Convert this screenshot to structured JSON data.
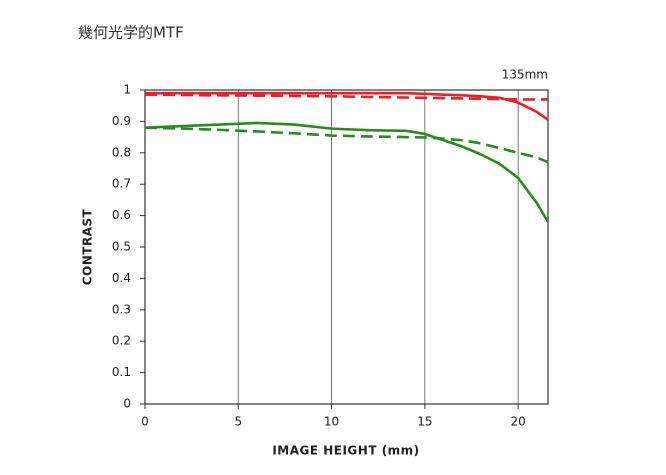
{
  "chart_data": {
    "type": "line",
    "title": "幾何光学的MTF",
    "annotation": "135mm",
    "x_label": "IMAGE HEIGHT (mm)",
    "y_label": "CONTRAST",
    "x": [
      0,
      2,
      4,
      6,
      8,
      10,
      12,
      14,
      15,
      16,
      17,
      18,
      19,
      20,
      21,
      21.6
    ],
    "series": [
      {
        "color": "#e8212a",
        "dashed": false,
        "values": [
          0.99,
          0.99,
          0.99,
          0.99,
          0.99,
          0.99,
          0.99,
          0.99,
          0.988,
          0.985,
          0.983,
          0.98,
          0.975,
          0.96,
          0.93,
          0.905
        ]
      },
      {
        "color": "#e8212a",
        "dashed": true,
        "values": [
          0.985,
          0.984,
          0.983,
          0.982,
          0.981,
          0.98,
          0.978,
          0.976,
          0.975,
          0.974,
          0.973,
          0.972,
          0.971,
          0.97,
          0.97,
          0.97
        ]
      },
      {
        "color": "#2a8a22",
        "dashed": false,
        "values": [
          0.88,
          0.885,
          0.89,
          0.895,
          0.89,
          0.877,
          0.872,
          0.87,
          0.86,
          0.84,
          0.82,
          0.795,
          0.765,
          0.72,
          0.64,
          0.58
        ]
      },
      {
        "color": "#2a8a22",
        "dashed": true,
        "values": [
          0.88,
          0.877,
          0.873,
          0.868,
          0.862,
          0.855,
          0.852,
          0.85,
          0.849,
          0.845,
          0.84,
          0.83,
          0.815,
          0.8,
          0.785,
          0.77
        ]
      }
    ],
    "xlim": [
      0,
      21.6
    ],
    "ylim": [
      0,
      1
    ],
    "xticks": [
      0,
      5,
      10,
      15,
      20
    ],
    "yticks": [
      0,
      0.1,
      0.2,
      0.3,
      0.4,
      0.5,
      0.6,
      0.7,
      0.8,
      0.9,
      1
    ],
    "grid": "x"
  }
}
